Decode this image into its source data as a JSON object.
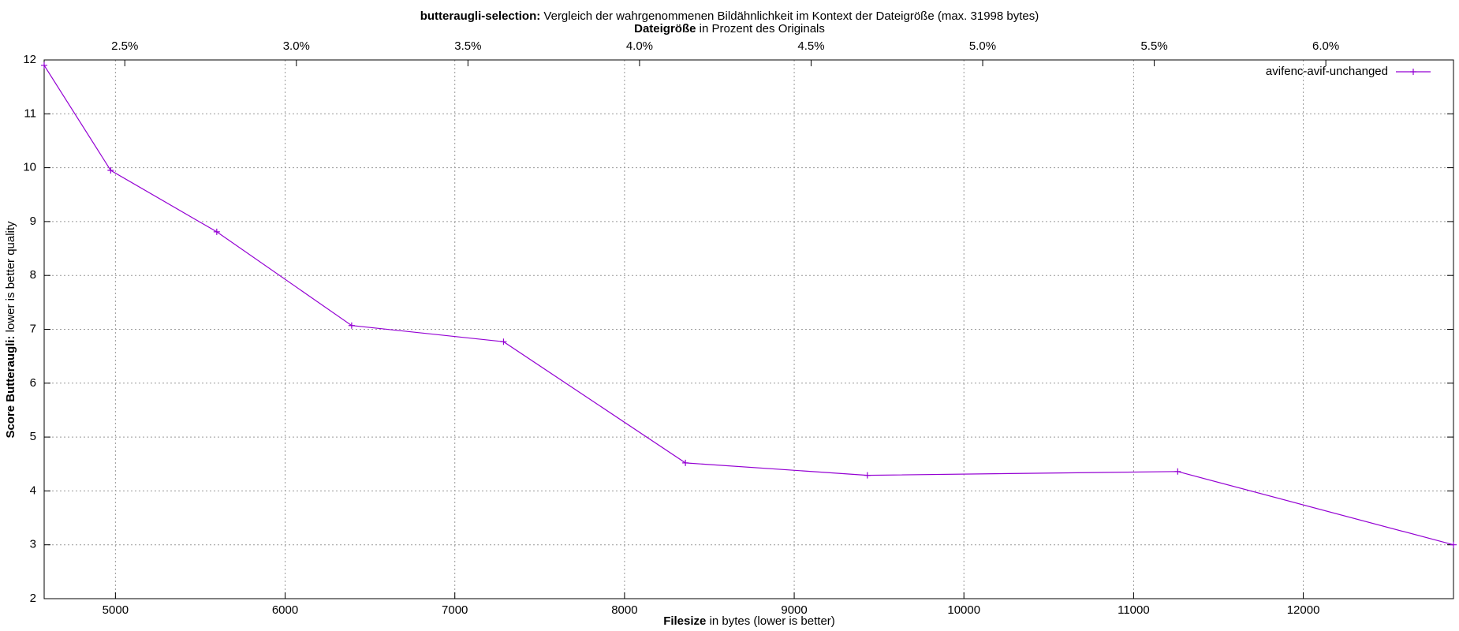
{
  "chart_data": {
    "type": "line",
    "title_bold": "butteraugli-selection:",
    "title": "Vergleich der wahrgenommenen Bildähnlichkeit im Kontext der Dateigröße (max. 31998 bytes)",
    "x2_label_bold": "Dateigröße",
    "x2_label": "in Prozent des Originals",
    "x_label_bold": "Filesize",
    "x_label": "in bytes (lower is better)",
    "y_label_bold": "Score Butteraugli:",
    "y_label": "lower is better quality",
    "x": [
      4580,
      4972,
      5597,
      6392,
      7287,
      8359,
      9431,
      11260,
      12885
    ],
    "series": [
      {
        "name": "avifenc-avif-unchanged",
        "color": "#9400d3",
        "values": [
          11.9,
          9.95,
          8.81,
          7.07,
          6.77,
          4.52,
          4.29,
          4.36,
          3.0
        ]
      }
    ],
    "xlim": [
      4580,
      12885
    ],
    "xticks": [
      5000,
      6000,
      7000,
      8000,
      9000,
      10000,
      11000,
      12000
    ],
    "x2lim": [
      2.265,
      6.372
    ],
    "x2ticks": [
      {
        "value": 2.5,
        "label": "2.5%"
      },
      {
        "value": 3.0,
        "label": "3.0%"
      },
      {
        "value": 3.5,
        "label": "3.5%"
      },
      {
        "value": 4.0,
        "label": "4.0%"
      },
      {
        "value": 4.5,
        "label": "4.5%"
      },
      {
        "value": 5.0,
        "label": "5.0%"
      },
      {
        "value": 5.5,
        "label": "5.5%"
      },
      {
        "value": 6.0,
        "label": "6.0%"
      }
    ],
    "ylim": [
      2,
      12
    ],
    "yticks": [
      2,
      3,
      4,
      5,
      6,
      7,
      8,
      9,
      10,
      11,
      12
    ],
    "grid": true,
    "legend": "top-right"
  }
}
